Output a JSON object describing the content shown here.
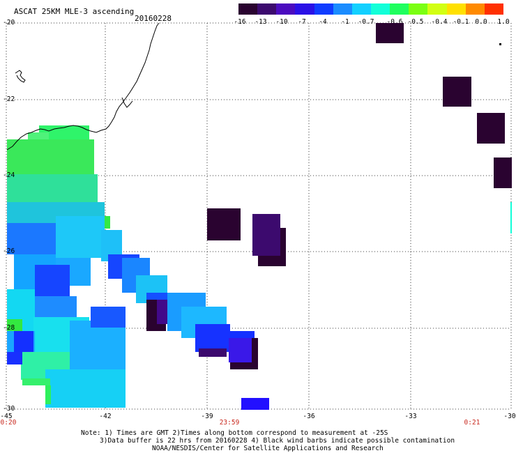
{
  "header": {
    "title": "ASCAT 25KM MLE-3 ascending",
    "date": "20160228"
  },
  "colorbar": {
    "ticks": [
      "-16",
      "-13",
      "-10",
      "-7",
      "-4",
      "-1",
      "-0.7",
      "-0.6",
      "-0.5",
      "-0.4",
      "-0.1",
      "0.0",
      "1.0"
    ],
    "colors": [
      "#2a0330",
      "#3c0a6e",
      "#4b0bbf",
      "#2a10e6",
      "#0f3cff",
      "#1a8cff",
      "#12d0ff",
      "#12ffd8",
      "#1fff5e",
      "#7bff12",
      "#d2ff12",
      "#ffe000",
      "#ff8a00",
      "#ff3000"
    ]
  },
  "map": {
    "lat_labels": [
      "-20",
      "-22",
      "-24",
      "-26",
      "-28",
      "-30"
    ],
    "lon_labels": [
      "-45",
      "-42",
      "-39",
      "-36",
      "-33",
      "-30"
    ],
    "time_labels": [
      "0:20",
      "23:59",
      "0:21"
    ]
  },
  "notes": {
    "line1": "Note: 1) Times are GMT 2)Times along bottom correspond to measurement at -25S",
    "line2": "3)Data buffer is 22 hrs from 20160228 4) Black wind barbs indicate possible contamination",
    "line3": "NOAA/NESDIS/Center for Satellite Applications and Research"
  }
}
